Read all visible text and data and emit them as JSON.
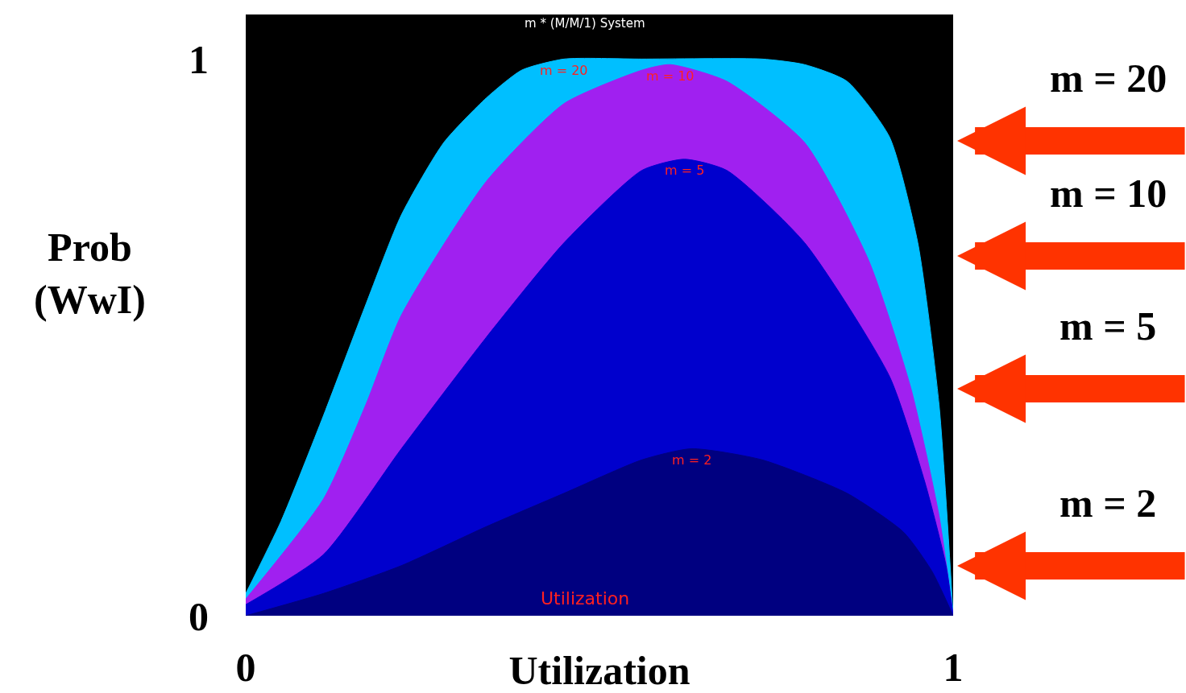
{
  "chart_data": {
    "type": "area",
    "title": "m * (M/M/1) System",
    "xlabel": "Utilization",
    "ylabel": "Prob (WwI)",
    "xlim": [
      0,
      1
    ],
    "ylim": [
      0,
      1.08
    ],
    "xticks": [
      0,
      1
    ],
    "yticks": [
      0,
      1
    ],
    "grid": false,
    "legend": false,
    "series": [
      {
        "name": "m = 20",
        "color": "#00bfff",
        "x": [
          0,
          0.05,
          0.11,
          0.17,
          0.22,
          0.28,
          0.34,
          0.39,
          0.45,
          0.56,
          0.73,
          0.79,
          0.85,
          0.91,
          0.95,
          0.98,
          1.0
        ],
        "values": [
          0.04,
          0.17,
          0.36,
          0.56,
          0.72,
          0.85,
          0.93,
          0.98,
          1.0,
          1.0,
          1.0,
          0.99,
          0.96,
          0.86,
          0.67,
          0.38,
          0.0
        ]
      },
      {
        "name": "m = 10",
        "color": "#a020f0",
        "x": [
          0,
          0.11,
          0.17,
          0.22,
          0.34,
          0.45,
          0.56,
          0.6,
          0.68,
          0.79,
          0.88,
          0.94,
          0.98,
          1.0
        ],
        "values": [
          0.03,
          0.21,
          0.38,
          0.54,
          0.78,
          0.92,
          0.98,
          0.99,
          0.96,
          0.85,
          0.64,
          0.41,
          0.18,
          0.0
        ]
      },
      {
        "name": "m = 5",
        "color": "#0000cd",
        "x": [
          0,
          0.11,
          0.22,
          0.34,
          0.45,
          0.56,
          0.62,
          0.68,
          0.79,
          0.91,
          0.96,
          0.99,
          1.0
        ],
        "values": [
          0.02,
          0.11,
          0.3,
          0.5,
          0.67,
          0.8,
          0.82,
          0.8,
          0.67,
          0.43,
          0.24,
          0.09,
          0.0
        ]
      },
      {
        "name": "m = 2",
        "color": "#000080",
        "x": [
          0,
          0.11,
          0.22,
          0.34,
          0.45,
          0.56,
          0.63,
          0.73,
          0.85,
          0.93,
          0.97,
          1.0
        ],
        "values": [
          0.0,
          0.04,
          0.09,
          0.16,
          0.22,
          0.28,
          0.3,
          0.28,
          0.22,
          0.15,
          0.08,
          0.0
        ]
      }
    ],
    "annotations": [
      "Utilization",
      "m = 20",
      "m = 10",
      "m = 5",
      "m = 2"
    ]
  }
}
